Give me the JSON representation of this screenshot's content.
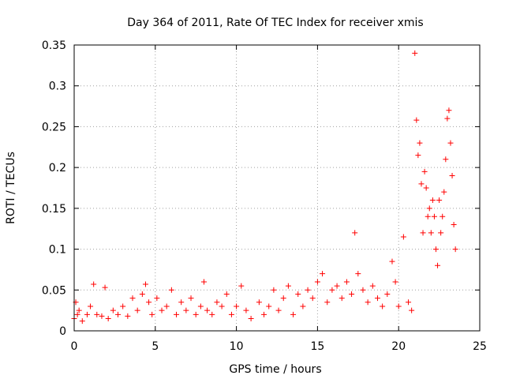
{
  "chart_data": {
    "type": "scatter",
    "title": "Day 364 of 2011, Rate Of TEC Index for receiver xmis",
    "xlabel": "GPS time / hours",
    "ylabel": "ROTI / TECUs",
    "xlim": [
      0,
      25
    ],
    "ylim": [
      0,
      0.35
    ],
    "x_ticks": [
      0,
      5,
      10,
      15,
      20,
      25
    ],
    "x_tick_labels": [
      "0",
      "5",
      "10",
      "15",
      "20",
      "25"
    ],
    "y_ticks": [
      0,
      0.05,
      0.1,
      0.15,
      0.2,
      0.25,
      0.3,
      0.35
    ],
    "y_tick_labels": [
      "0",
      "0.05",
      "0.1",
      "0.15",
      "0.2",
      "0.25",
      "0.3",
      "0.35"
    ],
    "grid": true,
    "marker": "plus",
    "color": "#ff0000",
    "series": [
      {
        "values_x": [
          0.0,
          0.1,
          0.2,
          0.3,
          0.5,
          0.8,
          1.0,
          1.2,
          1.4,
          1.7,
          1.9,
          2.1,
          2.4,
          2.7,
          3.0,
          3.3,
          3.6,
          3.9,
          4.2,
          4.4,
          4.6,
          4.8,
          5.1,
          5.4,
          5.7,
          6.0,
          6.3,
          6.6,
          6.9,
          7.2,
          7.5,
          7.8,
          8.0,
          8.2,
          8.5,
          8.8,
          9.1,
          9.4,
          9.7,
          10.0,
          10.3,
          10.6,
          10.9,
          11.4,
          11.7,
          12.0,
          12.3,
          12.6,
          12.9,
          13.2,
          13.5,
          13.8,
          14.1,
          14.4,
          14.7,
          15.0,
          15.3,
          15.6,
          15.9,
          16.2,
          16.5,
          16.8,
          17.1,
          17.3,
          17.5,
          17.8,
          18.1,
          18.4,
          18.7,
          19.0,
          19.3,
          19.6,
          19.8,
          20.0,
          20.3,
          20.6,
          20.8,
          21.0,
          21.1,
          21.2,
          21.3,
          21.4,
          21.5,
          21.6,
          21.7,
          21.8,
          21.9,
          22.0,
          22.1,
          22.2,
          22.3,
          22.4,
          22.5,
          22.6,
          22.7,
          22.8,
          22.9,
          23.0,
          23.1,
          23.2,
          23.3,
          23.4,
          23.5
        ],
        "values_y": [
          0.015,
          0.035,
          0.02,
          0.025,
          0.012,
          0.02,
          0.03,
          0.057,
          0.02,
          0.018,
          0.053,
          0.015,
          0.025,
          0.02,
          0.03,
          0.018,
          0.04,
          0.025,
          0.045,
          0.057,
          0.035,
          0.02,
          0.04,
          0.025,
          0.03,
          0.05,
          0.02,
          0.035,
          0.025,
          0.04,
          0.02,
          0.03,
          0.06,
          0.025,
          0.02,
          0.035,
          0.03,
          0.045,
          0.02,
          0.03,
          0.055,
          0.025,
          0.015,
          0.035,
          0.02,
          0.03,
          0.05,
          0.025,
          0.04,
          0.055,
          0.02,
          0.045,
          0.03,
          0.05,
          0.04,
          0.06,
          0.07,
          0.035,
          0.05,
          0.055,
          0.04,
          0.06,
          0.045,
          0.12,
          0.07,
          0.05,
          0.035,
          0.055,
          0.04,
          0.03,
          0.045,
          0.085,
          0.06,
          0.03,
          0.115,
          0.035,
          0.025,
          0.34,
          0.258,
          0.215,
          0.23,
          0.18,
          0.12,
          0.195,
          0.175,
          0.14,
          0.15,
          0.12,
          0.16,
          0.14,
          0.1,
          0.08,
          0.16,
          0.12,
          0.14,
          0.17,
          0.21,
          0.26,
          0.27,
          0.23,
          0.19,
          0.13,
          0.1
        ]
      }
    ]
  }
}
